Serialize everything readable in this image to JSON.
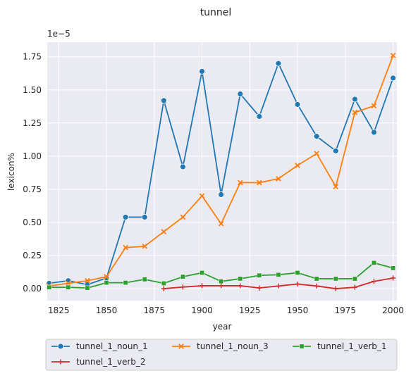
{
  "chart_data": {
    "type": "line",
    "title": "tunnel",
    "xlabel": "year",
    "ylabel": "lexicon%",
    "y_offset_text": "1e−5",
    "xlim": [
      1819,
      2002
    ],
    "ylim": [
      -0.09,
      1.86
    ],
    "x_ticks": [
      1825,
      1850,
      1875,
      1900,
      1925,
      1950,
      1975,
      2000
    ],
    "y_ticks": [
      0.0,
      0.25,
      0.5,
      0.75,
      1.0,
      1.25,
      1.5,
      1.75
    ],
    "y_tick_labels": [
      "0.00",
      "0.25",
      "0.50",
      "0.75",
      "1.00",
      "1.25",
      "1.50",
      "1.75"
    ],
    "grid": true,
    "legend_position": "bottom-outside",
    "series": [
      {
        "name": "tunnel_1_noun_1",
        "color": "#1f77b4",
        "marker": "circle",
        "x": [
          1820,
          1830,
          1840,
          1850,
          1860,
          1870,
          1880,
          1890,
          1900,
          1910,
          1920,
          1930,
          1940,
          1950,
          1960,
          1970,
          1980,
          1990,
          2000
        ],
        "y": [
          0.04,
          0.06,
          0.03,
          0.08,
          0.54,
          0.54,
          1.42,
          0.92,
          1.64,
          0.71,
          1.47,
          1.3,
          1.7,
          1.39,
          1.15,
          1.04,
          1.43,
          1.18,
          1.59
        ]
      },
      {
        "name": "tunnel_1_noun_3",
        "color": "#ff7f0e",
        "marker": "x",
        "x": [
          1820,
          1830,
          1840,
          1850,
          1860,
          1870,
          1880,
          1890,
          1900,
          1910,
          1920,
          1930,
          1940,
          1950,
          1960,
          1970,
          1980,
          1990,
          2000
        ],
        "y": [
          0.02,
          0.04,
          0.06,
          0.09,
          0.31,
          0.32,
          0.43,
          0.54,
          0.7,
          0.49,
          0.8,
          0.8,
          0.83,
          0.93,
          1.02,
          0.77,
          1.33,
          1.38,
          1.76
        ]
      },
      {
        "name": "tunnel_1_verb_1",
        "color": "#2ca02c",
        "marker": "square",
        "x": [
          1820,
          1830,
          1840,
          1850,
          1860,
          1870,
          1880,
          1890,
          1900,
          1910,
          1920,
          1930,
          1940,
          1950,
          1960,
          1970,
          1980,
          1990,
          2000
        ],
        "y": [
          0.01,
          0.01,
          0.005,
          0.045,
          0.045,
          0.07,
          0.04,
          0.09,
          0.12,
          0.055,
          0.075,
          0.1,
          0.105,
          0.12,
          0.075,
          0.075,
          0.075,
          0.195,
          0.155
        ]
      },
      {
        "name": "tunnel_1_verb_2",
        "color": "#d62728",
        "marker": "plus",
        "x": [
          1880,
          1890,
          1900,
          1910,
          1920,
          1930,
          1940,
          1950,
          1960,
          1970,
          1980,
          1990,
          2000
        ],
        "y": [
          0.0,
          0.012,
          0.022,
          0.022,
          0.022,
          0.005,
          0.02,
          0.035,
          0.02,
          0.0,
          0.01,
          0.055,
          0.08
        ]
      }
    ]
  }
}
